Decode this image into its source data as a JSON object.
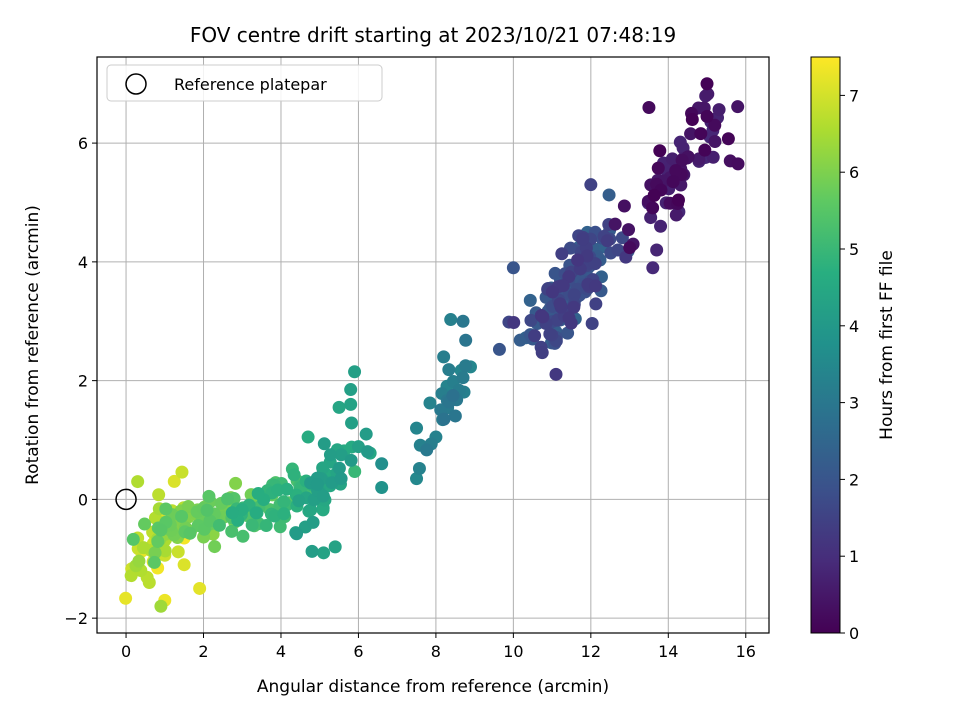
{
  "chart_data": {
    "type": "scatter",
    "title": "FOV centre drift starting at 2023/10/21 07:48:19",
    "xlabel": "Angular distance from reference (arcmin)",
    "ylabel": "Rotation from reference (arcmin)",
    "xlim": [
      -0.75,
      16.6
    ],
    "ylim": [
      -2.25,
      7.45
    ],
    "x_ticks": [
      0,
      2,
      4,
      6,
      8,
      10,
      12,
      14,
      16
    ],
    "y_ticks": [
      -2,
      0,
      2,
      4,
      6
    ],
    "grid": true,
    "legend": {
      "placement": "top-left",
      "entries": [
        {
          "label": "Reference platepar",
          "marker": "open-circle"
        }
      ]
    },
    "reference_point": {
      "x": 0,
      "y": 0
    },
    "colorbar": {
      "label": "Hours from first FF file",
      "colormap": "viridis",
      "range": [
        0,
        7.5
      ],
      "ticks": [
        0,
        1,
        2,
        3,
        4,
        5,
        6,
        7
      ]
    },
    "clusters": [
      {
        "hours_range": [
          0.0,
          0.9
        ],
        "center": [
          14.3,
          5.6
        ],
        "spread": [
          0.55,
          0.55
        ],
        "count": 70
      },
      {
        "hours_range": [
          1.2,
          2.4
        ],
        "center": [
          11.5,
          3.6
        ],
        "spread": [
          0.55,
          0.55
        ],
        "count": 150
      },
      {
        "hours_range": [
          2.8,
          3.5
        ],
        "center": [
          8.3,
          1.7
        ],
        "spread": [
          0.35,
          0.55
        ],
        "count": 25
      },
      {
        "hours_range": [
          4.0,
          4.6
        ],
        "center": [
          5.2,
          0.3
        ],
        "spread": [
          0.55,
          0.45
        ],
        "count": 45
      },
      {
        "hours_range": [
          4.6,
          5.4
        ],
        "center": [
          3.8,
          -0.05
        ],
        "spread": [
          0.7,
          0.3
        ],
        "count": 60
      },
      {
        "hours_range": [
          5.4,
          6.2
        ],
        "center": [
          2.0,
          -0.35
        ],
        "spread": [
          0.8,
          0.25
        ],
        "count": 60
      },
      {
        "hours_range": [
          6.2,
          7.4
        ],
        "center": [
          0.7,
          -0.7
        ],
        "spread": [
          0.35,
          0.45
        ],
        "count": 40
      }
    ],
    "points": [
      {
        "x": 15.0,
        "y": 7.0,
        "h": 0.05
      },
      {
        "x": 13.5,
        "y": 6.6,
        "h": 0.2
      },
      {
        "x": 14.6,
        "y": 6.5,
        "h": 0.15
      },
      {
        "x": 15.0,
        "y": 6.45,
        "h": 0.1
      },
      {
        "x": 15.2,
        "y": 6.3,
        "h": 0.2
      },
      {
        "x": 13.6,
        "y": 3.9,
        "h": 0.9
      },
      {
        "x": 13.7,
        "y": 4.2,
        "h": 0.8
      },
      {
        "x": 13.8,
        "y": 4.6,
        "h": 0.75
      },
      {
        "x": 15.6,
        "y": 5.7,
        "h": 0.3
      },
      {
        "x": 15.8,
        "y": 5.65,
        "h": 0.25
      },
      {
        "x": 12.0,
        "y": 5.3,
        "h": 1.5
      },
      {
        "x": 12.7,
        "y": 4.2,
        "h": 1.6
      },
      {
        "x": 10.0,
        "y": 3.9,
        "h": 2.0
      },
      {
        "x": 10.5,
        "y": 2.7,
        "h": 2.1
      },
      {
        "x": 11.4,
        "y": 2.8,
        "h": 2.0
      },
      {
        "x": 8.7,
        "y": 3.0,
        "h": 3.0
      },
      {
        "x": 8.7,
        "y": 2.05,
        "h": 3.1
      },
      {
        "x": 8.2,
        "y": 2.4,
        "h": 3.2
      },
      {
        "x": 7.5,
        "y": 1.2,
        "h": 3.4
      },
      {
        "x": 7.5,
        "y": 0.35,
        "h": 3.5
      },
      {
        "x": 8.0,
        "y": 1.05,
        "h": 3.3
      },
      {
        "x": 6.6,
        "y": 0.6,
        "h": 3.7
      },
      {
        "x": 6.6,
        "y": 0.2,
        "h": 3.8
      },
      {
        "x": 5.9,
        "y": 2.15,
        "h": 4.2
      },
      {
        "x": 5.8,
        "y": 1.85,
        "h": 4.2
      },
      {
        "x": 5.8,
        "y": 1.6,
        "h": 4.3
      },
      {
        "x": 5.5,
        "y": 1.55,
        "h": 4.4
      },
      {
        "x": 6.2,
        "y": 1.1,
        "h": 4.1
      },
      {
        "x": 4.7,
        "y": 1.05,
        "h": 4.6
      },
      {
        "x": 5.1,
        "y": -0.9,
        "h": 4.3
      },
      {
        "x": 5.4,
        "y": -0.8,
        "h": 4.3
      },
      {
        "x": 0.3,
        "y": 0.3,
        "h": 6.6
      },
      {
        "x": 0.3,
        "y": -0.65,
        "h": 6.8
      },
      {
        "x": 0.6,
        "y": -1.4,
        "h": 6.7
      },
      {
        "x": 0.9,
        "y": -1.8,
        "h": 6.4
      },
      {
        "x": 1.0,
        "y": -1.7,
        "h": 7.3
      },
      {
        "x": 1.9,
        "y": -1.5,
        "h": 7.2
      },
      {
        "x": 1.5,
        "y": -1.1,
        "h": 7.1
      },
      {
        "x": 0.7,
        "y": -1.05,
        "h": 7.0
      },
      {
        "x": 1.5,
        "y": -0.65,
        "h": 7.4
      }
    ]
  }
}
